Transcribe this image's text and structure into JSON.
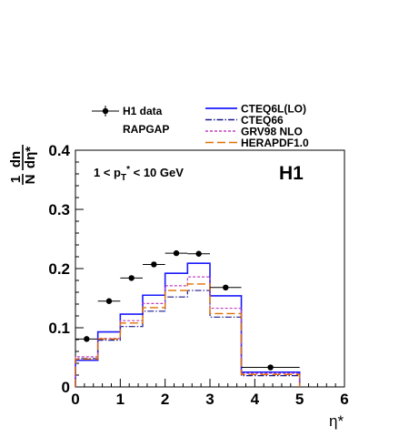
{
  "chart_data": {
    "type": "line",
    "title": "",
    "xlabel": "η*",
    "ylabel_parts": {
      "num": "1",
      "den": "N",
      "num2": "dn",
      "den2": "dη*"
    },
    "xlim": [
      0,
      6
    ],
    "ylim": [
      0,
      0.4
    ],
    "x_ticks": [
      "0",
      "1",
      "2",
      "3",
      "4",
      "5",
      "6"
    ],
    "y_ticks": [
      "0",
      "0.1",
      "0.2",
      "0.3",
      "0.4"
    ],
    "bin_edges": [
      0,
      0.5,
      1.0,
      1.5,
      2.0,
      2.5,
      3.0,
      3.7,
      5.0
    ],
    "legend_left": {
      "data_label": "H1 data",
      "group_label": "RAPGAP"
    },
    "cut_text": {
      "pre": "1 < p",
      "sub": "T",
      "sup": "*",
      "post": " < 10 GeV"
    },
    "experiment_label": "H1",
    "data_points": {
      "name": "H1 data",
      "x": [
        0.25,
        0.75,
        1.25,
        1.75,
        2.25,
        2.75,
        3.35,
        4.35
      ],
      "y": [
        0.081,
        0.145,
        0.184,
        0.207,
        0.226,
        0.225,
        0.168,
        0.033
      ],
      "xerr": [
        0.25,
        0.25,
        0.25,
        0.25,
        0.25,
        0.25,
        0.35,
        0.65
      ]
    },
    "series": [
      {
        "name": "CTEQ6L(LO)",
        "color": "#1a1aff",
        "dash": "",
        "width": 1.6,
        "values": [
          0.045,
          0.093,
          0.123,
          0.155,
          0.192,
          0.209,
          0.154,
          0.025
        ]
      },
      {
        "name": "CTEQ66",
        "color": "#1a1a8c",
        "dash": "7,2,1.5,2",
        "width": 1.2,
        "values": [
          0.048,
          0.079,
          0.102,
          0.128,
          0.152,
          0.163,
          0.118,
          0.019
        ]
      },
      {
        "name": "GRV98 NLO",
        "color": "#c040c0",
        "dash": "3,2",
        "width": 1.2,
        "values": [
          0.051,
          0.082,
          0.112,
          0.141,
          0.171,
          0.186,
          0.133,
          0.023
        ]
      },
      {
        "name": "HERAPDF1.0",
        "color": "#e07000",
        "dash": "9,4",
        "width": 1.4,
        "values": [
          0.047,
          0.081,
          0.108,
          0.134,
          0.163,
          0.174,
          0.124,
          0.021
        ]
      }
    ]
  }
}
